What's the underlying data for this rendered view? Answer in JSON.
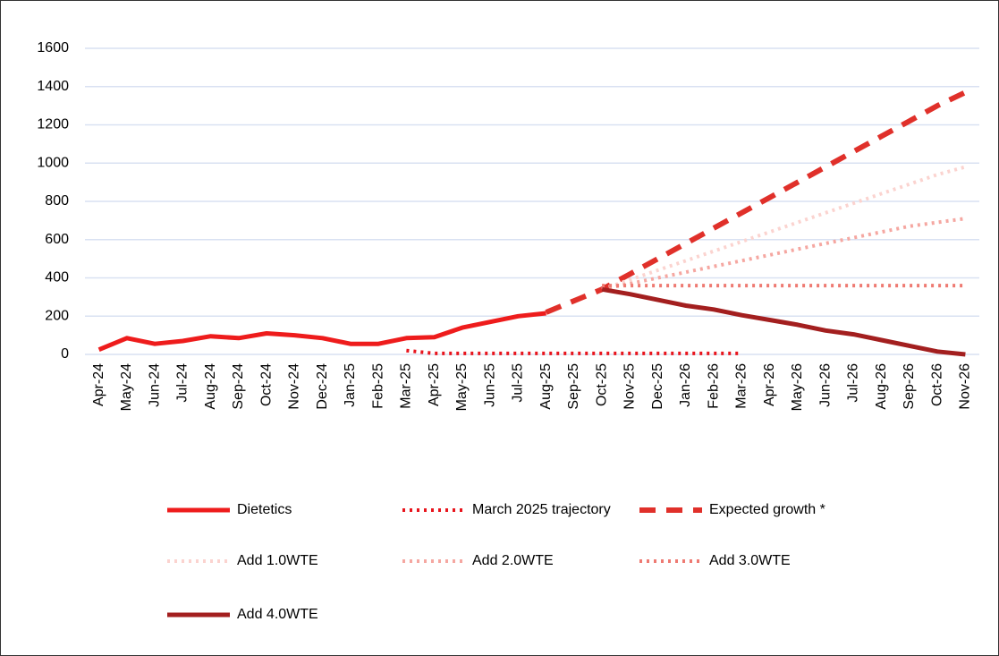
{
  "chart_data": {
    "type": "line",
    "categories": [
      "Apr-24",
      "May-24",
      "Jun-24",
      "Jul-24",
      "Aug-24",
      "Sep-24",
      "Oct-24",
      "Nov-24",
      "Dec-24",
      "Jan-25",
      "Feb-25",
      "Mar-25",
      "Apr-25",
      "May-25",
      "Jun-25",
      "Jul-25",
      "Aug-25",
      "Sep-25",
      "Oct-25",
      "Nov-25",
      "Dec-25",
      "Jan-26",
      "Feb-26",
      "Mar-26",
      "Apr-26",
      "May-26",
      "Jun-26",
      "Jul-26",
      "Aug-26",
      "Sep-26",
      "Oct-26",
      "Nov-26"
    ],
    "ylim": [
      0,
      1600
    ],
    "yticks": [
      0,
      200,
      400,
      600,
      800,
      1000,
      1200,
      1400,
      1600
    ],
    "grid": true,
    "series": [
      {
        "name": "Dietetics",
        "color": "#ee1c1c",
        "style": "solid",
        "values": [
          25,
          85,
          55,
          70,
          95,
          85,
          110,
          100,
          85,
          55,
          55,
          85,
          90,
          140,
          170,
          200,
          215,
          null,
          null,
          null,
          null,
          null,
          null,
          null,
          null,
          null,
          null,
          null,
          null,
          null,
          null,
          null
        ]
      },
      {
        "name": "March 2025 trajectory",
        "color": "#e8141c",
        "style": "dotted",
        "values": [
          null,
          null,
          null,
          null,
          null,
          null,
          null,
          null,
          null,
          null,
          null,
          20,
          5,
          5,
          5,
          5,
          5,
          5,
          5,
          5,
          5,
          5,
          5,
          5,
          null,
          null,
          null,
          null,
          null,
          null,
          null,
          null
        ]
      },
      {
        "name": "Expected growth *",
        "color": "#e0302a",
        "style": "dashed",
        "values": [
          null,
          null,
          null,
          null,
          null,
          null,
          null,
          null,
          null,
          null,
          null,
          null,
          null,
          null,
          null,
          null,
          220,
          280,
          340,
          420,
          500,
          580,
          660,
          740,
          820,
          900,
          980,
          1060,
          1140,
          1220,
          1300,
          1370
        ]
      },
      {
        "name": "Add 1.0WTE",
        "color": "#fbd3cf",
        "style": "dotted",
        "values": [
          null,
          null,
          null,
          null,
          null,
          null,
          null,
          null,
          null,
          null,
          null,
          null,
          null,
          null,
          null,
          null,
          null,
          null,
          340,
          390,
          440,
          490,
          540,
          590,
          640,
          690,
          740,
          790,
          840,
          890,
          940,
          980
        ]
      },
      {
        "name": "Add 2.0WTE",
        "color": "#f5a7a1",
        "style": "dotted",
        "values": [
          null,
          null,
          null,
          null,
          null,
          null,
          null,
          null,
          null,
          null,
          null,
          null,
          null,
          null,
          null,
          null,
          null,
          null,
          340,
          370,
          400,
          430,
          460,
          490,
          520,
          550,
          580,
          610,
          640,
          670,
          690,
          710
        ]
      },
      {
        "name": "Add 3.0WTE",
        "color": "#ee7a72",
        "style": "dotted",
        "values": [
          null,
          null,
          null,
          null,
          null,
          null,
          null,
          null,
          null,
          null,
          null,
          null,
          null,
          null,
          null,
          null,
          null,
          null,
          360,
          360,
          360,
          360,
          360,
          360,
          360,
          360,
          360,
          360,
          360,
          360,
          360,
          360
        ]
      },
      {
        "name": "Add 4.0WTE",
        "color": "#a31f1f",
        "style": "solid",
        "values": [
          null,
          null,
          null,
          null,
          null,
          null,
          null,
          null,
          null,
          null,
          null,
          null,
          null,
          null,
          null,
          null,
          null,
          null,
          340,
          315,
          285,
          255,
          235,
          205,
          180,
          155,
          125,
          105,
          75,
          45,
          15,
          0
        ]
      }
    ]
  }
}
